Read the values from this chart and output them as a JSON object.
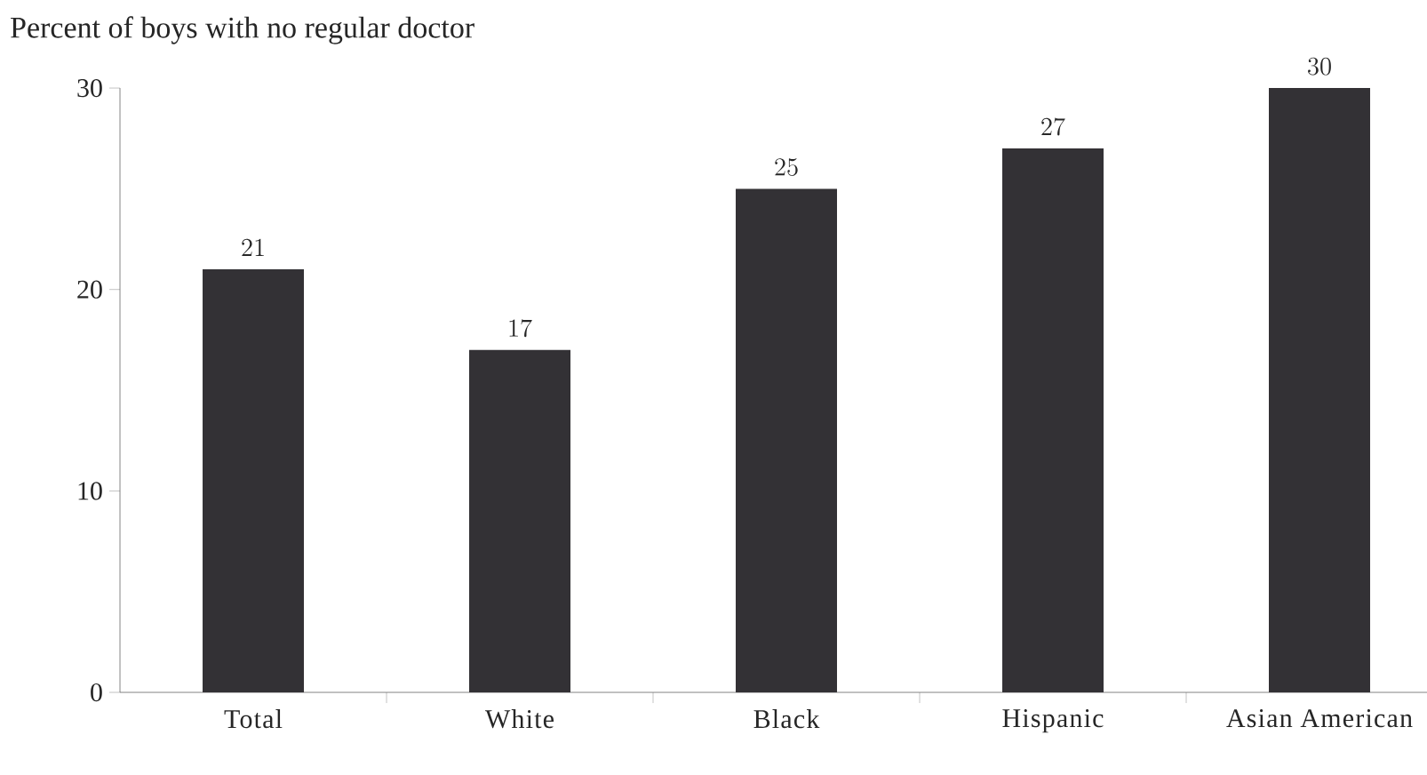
{
  "chart_data": {
    "type": "bar",
    "title": "Percent of boys with no regular doctor",
    "categories": [
      "Total",
      "White",
      "Black",
      "Hispanic",
      "Asian American"
    ],
    "values": [
      21,
      17,
      25,
      27,
      30
    ],
    "color": "#333135",
    "ylim": [
      0,
      30
    ],
    "yticks": [
      0,
      10,
      20,
      30
    ],
    "grid": false,
    "data_labels": true
  }
}
